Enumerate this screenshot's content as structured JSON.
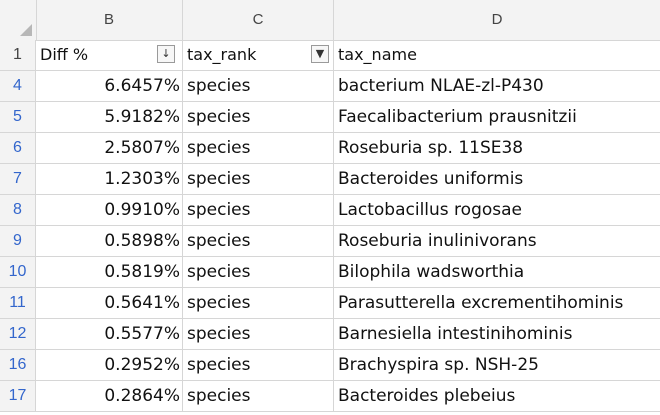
{
  "columns": [
    "B",
    "C",
    "D"
  ],
  "header": {
    "row_number": "1",
    "diff_label": "Diff %",
    "rank_label": "tax_rank",
    "name_label": "tax_name",
    "sort_icon": "sort-descending-icon",
    "filter_icon": "filter-active-icon"
  },
  "rows": [
    {
      "row": "4",
      "diff": "6.6457%",
      "rank": "species",
      "name": "bacterium NLAE-zl-P430"
    },
    {
      "row": "5",
      "diff": "5.9182%",
      "rank": "species",
      "name": "Faecalibacterium prausnitzii"
    },
    {
      "row": "6",
      "diff": "2.5807%",
      "rank": "species",
      "name": "Roseburia sp. 11SE38"
    },
    {
      "row": "7",
      "diff": "1.2303%",
      "rank": "species",
      "name": "Bacteroides uniformis"
    },
    {
      "row": "8",
      "diff": "0.9910%",
      "rank": "species",
      "name": "Lactobacillus rogosae"
    },
    {
      "row": "9",
      "diff": "0.5898%",
      "rank": "species",
      "name": "Roseburia inulinivorans"
    },
    {
      "row": "10",
      "diff": "0.5819%",
      "rank": "species",
      "name": "Bilophila wadsworthia"
    },
    {
      "row": "11",
      "diff": "0.5641%",
      "rank": "species",
      "name": "Parasutterella excrementihominis"
    },
    {
      "row": "12",
      "diff": "0.5577%",
      "rank": "species",
      "name": "Barnesiella intestinihominis"
    },
    {
      "row": "16",
      "diff": "0.2952%",
      "rank": "species",
      "name": "Brachyspira sp. NSH-25"
    },
    {
      "row": "17",
      "diff": "0.2864%",
      "rank": "species",
      "name": "Bacteroides plebeius"
    }
  ],
  "colors": {
    "row_number_filtered": "#3366cc",
    "gridline": "#d6d6d6",
    "header_bg": "#f3f3f3"
  }
}
